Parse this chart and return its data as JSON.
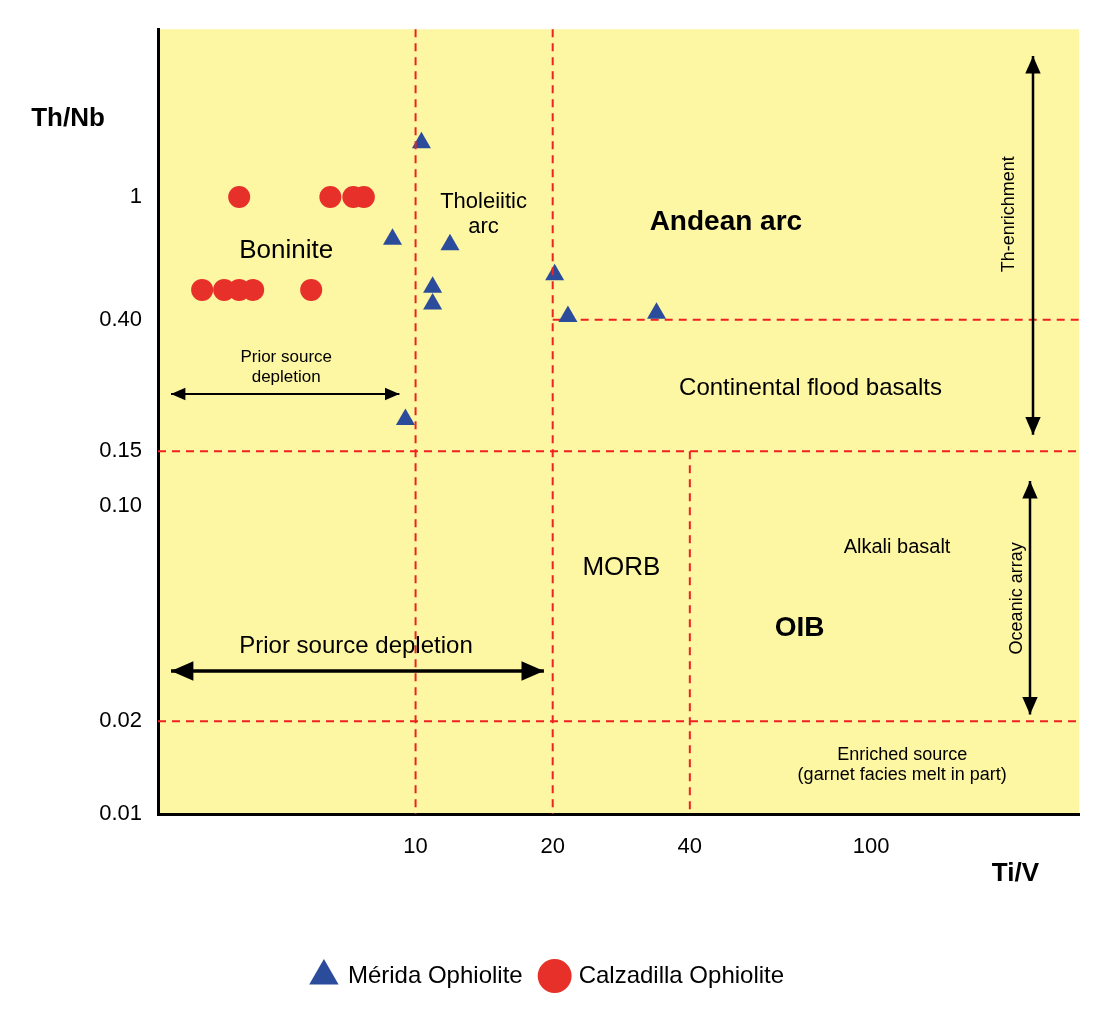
{
  "chart_data": {
    "type": "scatter",
    "xlabel": "Ti/V",
    "ylabel": "Th/Nb",
    "log": "xy",
    "xlim": [
      2.72,
      286
    ],
    "ylim": [
      0.01,
      3.5
    ],
    "xticks": [
      10,
      20,
      40,
      100
    ],
    "yticks": [
      {
        "value": 0.01,
        "label": "0.01"
      },
      {
        "value": 0.02,
        "label": "0.02"
      },
      {
        "value": 0.1,
        "label": "0.10"
      },
      {
        "value": 0.15,
        "label": "0.15"
      },
      {
        "value": 0.4,
        "label": "0.40"
      },
      {
        "value": 1,
        "label": "1"
      }
    ],
    "grid": false,
    "legend": "bottom",
    "series": [
      {
        "name": "Mérida Ophiolite",
        "color": "#2b4c9b",
        "marker": "triangle",
        "x": [
          10.3,
          8.9,
          11.9,
          10.9,
          10.9,
          20.2,
          21.6,
          33.8,
          9.5
        ],
        "values": [
          1.5,
          0.73,
          0.7,
          0.51,
          0.45,
          0.56,
          0.41,
          0.42,
          0.19
        ]
      },
      {
        "name": "Calzadilla Ophiolite",
        "color": "#e8302a",
        "marker": "circle",
        "x": [
          4.1,
          6.5,
          7.3,
          7.7,
          3.4,
          3.8,
          4.1,
          4.4,
          5.9
        ],
        "values": [
          1,
          1,
          1,
          1,
          0.5,
          0.5,
          0.5,
          0.5,
          0.5
        ]
      },
      {
        "type": "line",
        "color": "#ee2222",
        "line_style": "dashed",
        "marker": "none",
        "x": [
          20,
          286
        ],
        "values": [
          0.4,
          0.4
        ]
      },
      {
        "type": "line",
        "color": "#ee2222",
        "line_style": "dashed",
        "marker": "none",
        "x": [
          40,
          40
        ],
        "values": [
          0.15,
          0.01
        ]
      }
    ],
    "ref_lines": [
      {
        "axis": "x",
        "value": 10,
        "color": "#ee2222",
        "line_style": "dashed"
      },
      {
        "axis": "x",
        "value": 20,
        "color": "#ee2222",
        "line_style": "dashed"
      },
      {
        "axis": "y",
        "value": 0.15,
        "color": "#ee2222",
        "line_style": "dashed"
      },
      {
        "axis": "y",
        "value": 0.02,
        "color": "#ee2222",
        "line_style": "dashed"
      }
    ],
    "annotations": [
      "Boninite",
      "Tholeiitic\narc",
      "Andean arc",
      "Prior source\ndepletion",
      "Continental flood basalts",
      "Th-enrichment",
      "MORB",
      "Alkali basalt",
      "OIB",
      "Prior source depletion",
      "Oceanic array",
      "Enriched source\n(garnet facies melt in part)"
    ]
  }
}
